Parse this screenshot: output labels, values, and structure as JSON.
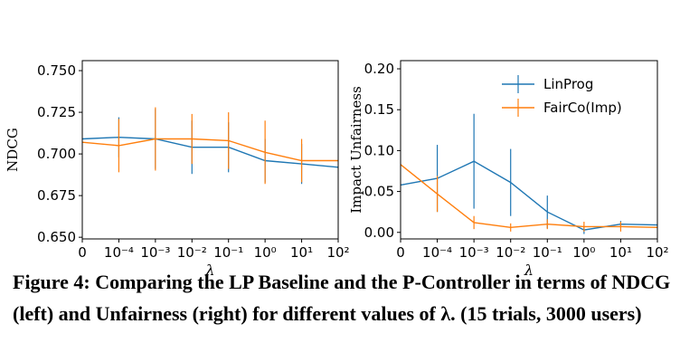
{
  "caption": {
    "label": "Figure 4:",
    "text": "Comparing the LP Baseline and the P-Controller in terms of NDCG (left) and Unfairness (right) for different values of λ. (15 trials, 3000 users)"
  },
  "colors": {
    "LinProg": "#1f77b4",
    "FairCo(Imp)": "#ff7f0e"
  },
  "chart_data": [
    {
      "type": "line",
      "x": [
        "0",
        "10⁻⁴",
        "10⁻³",
        "10⁻²",
        "10⁻¹",
        "10⁰",
        "10¹",
        "10²"
      ],
      "xlabel": "λ",
      "ylabel": "NDCG",
      "ylim": [
        0.649,
        0.756
      ],
      "yticks": [
        "0.650",
        "0.675",
        "0.700",
        "0.725",
        "0.750"
      ],
      "grid": false,
      "series": [
        {
          "name": "LinProg",
          "values": [
            0.709,
            0.71,
            0.709,
            0.704,
            0.704,
            0.696,
            0.694,
            0.692
          ],
          "err": [
            0.0,
            0.012,
            0.018,
            0.016,
            0.015,
            0.013,
            0.012,
            0.0
          ]
        },
        {
          "name": "FairCo(Imp)",
          "values": [
            0.707,
            0.705,
            0.709,
            0.709,
            0.708,
            0.701,
            0.696,
            0.696
          ],
          "err": [
            0.0,
            0.016,
            0.019,
            0.015,
            0.017,
            0.019,
            0.013,
            0.0
          ]
        }
      ]
    },
    {
      "type": "line",
      "x": [
        "0",
        "10⁻⁴",
        "10⁻³",
        "10⁻²",
        "10⁻¹",
        "10⁰",
        "10¹",
        "10²"
      ],
      "xlabel": "λ",
      "ylabel": "Impact Unfairness",
      "ylim": [
        -0.008,
        0.21
      ],
      "yticks": [
        "0.00",
        "0.05",
        "0.10",
        "0.15",
        "0.20"
      ],
      "grid": false,
      "legend": {
        "position": "top-right",
        "entries": [
          "LinProg",
          "FairCo(Imp)"
        ]
      },
      "series": [
        {
          "name": "LinProg",
          "values": [
            0.058,
            0.066,
            0.087,
            0.061,
            0.025,
            0.003,
            0.01,
            0.009
          ],
          "err": [
            0.0,
            0.041,
            0.058,
            0.041,
            0.02,
            0.005,
            0.004,
            0.0
          ]
        },
        {
          "name": "FairCo(Imp)",
          "values": [
            0.083,
            0.047,
            0.012,
            0.006,
            0.01,
            0.007,
            0.007,
            0.006
          ],
          "err": [
            0.0,
            0.022,
            0.008,
            0.005,
            0.006,
            0.006,
            0.006,
            0.0
          ]
        }
      ]
    }
  ]
}
